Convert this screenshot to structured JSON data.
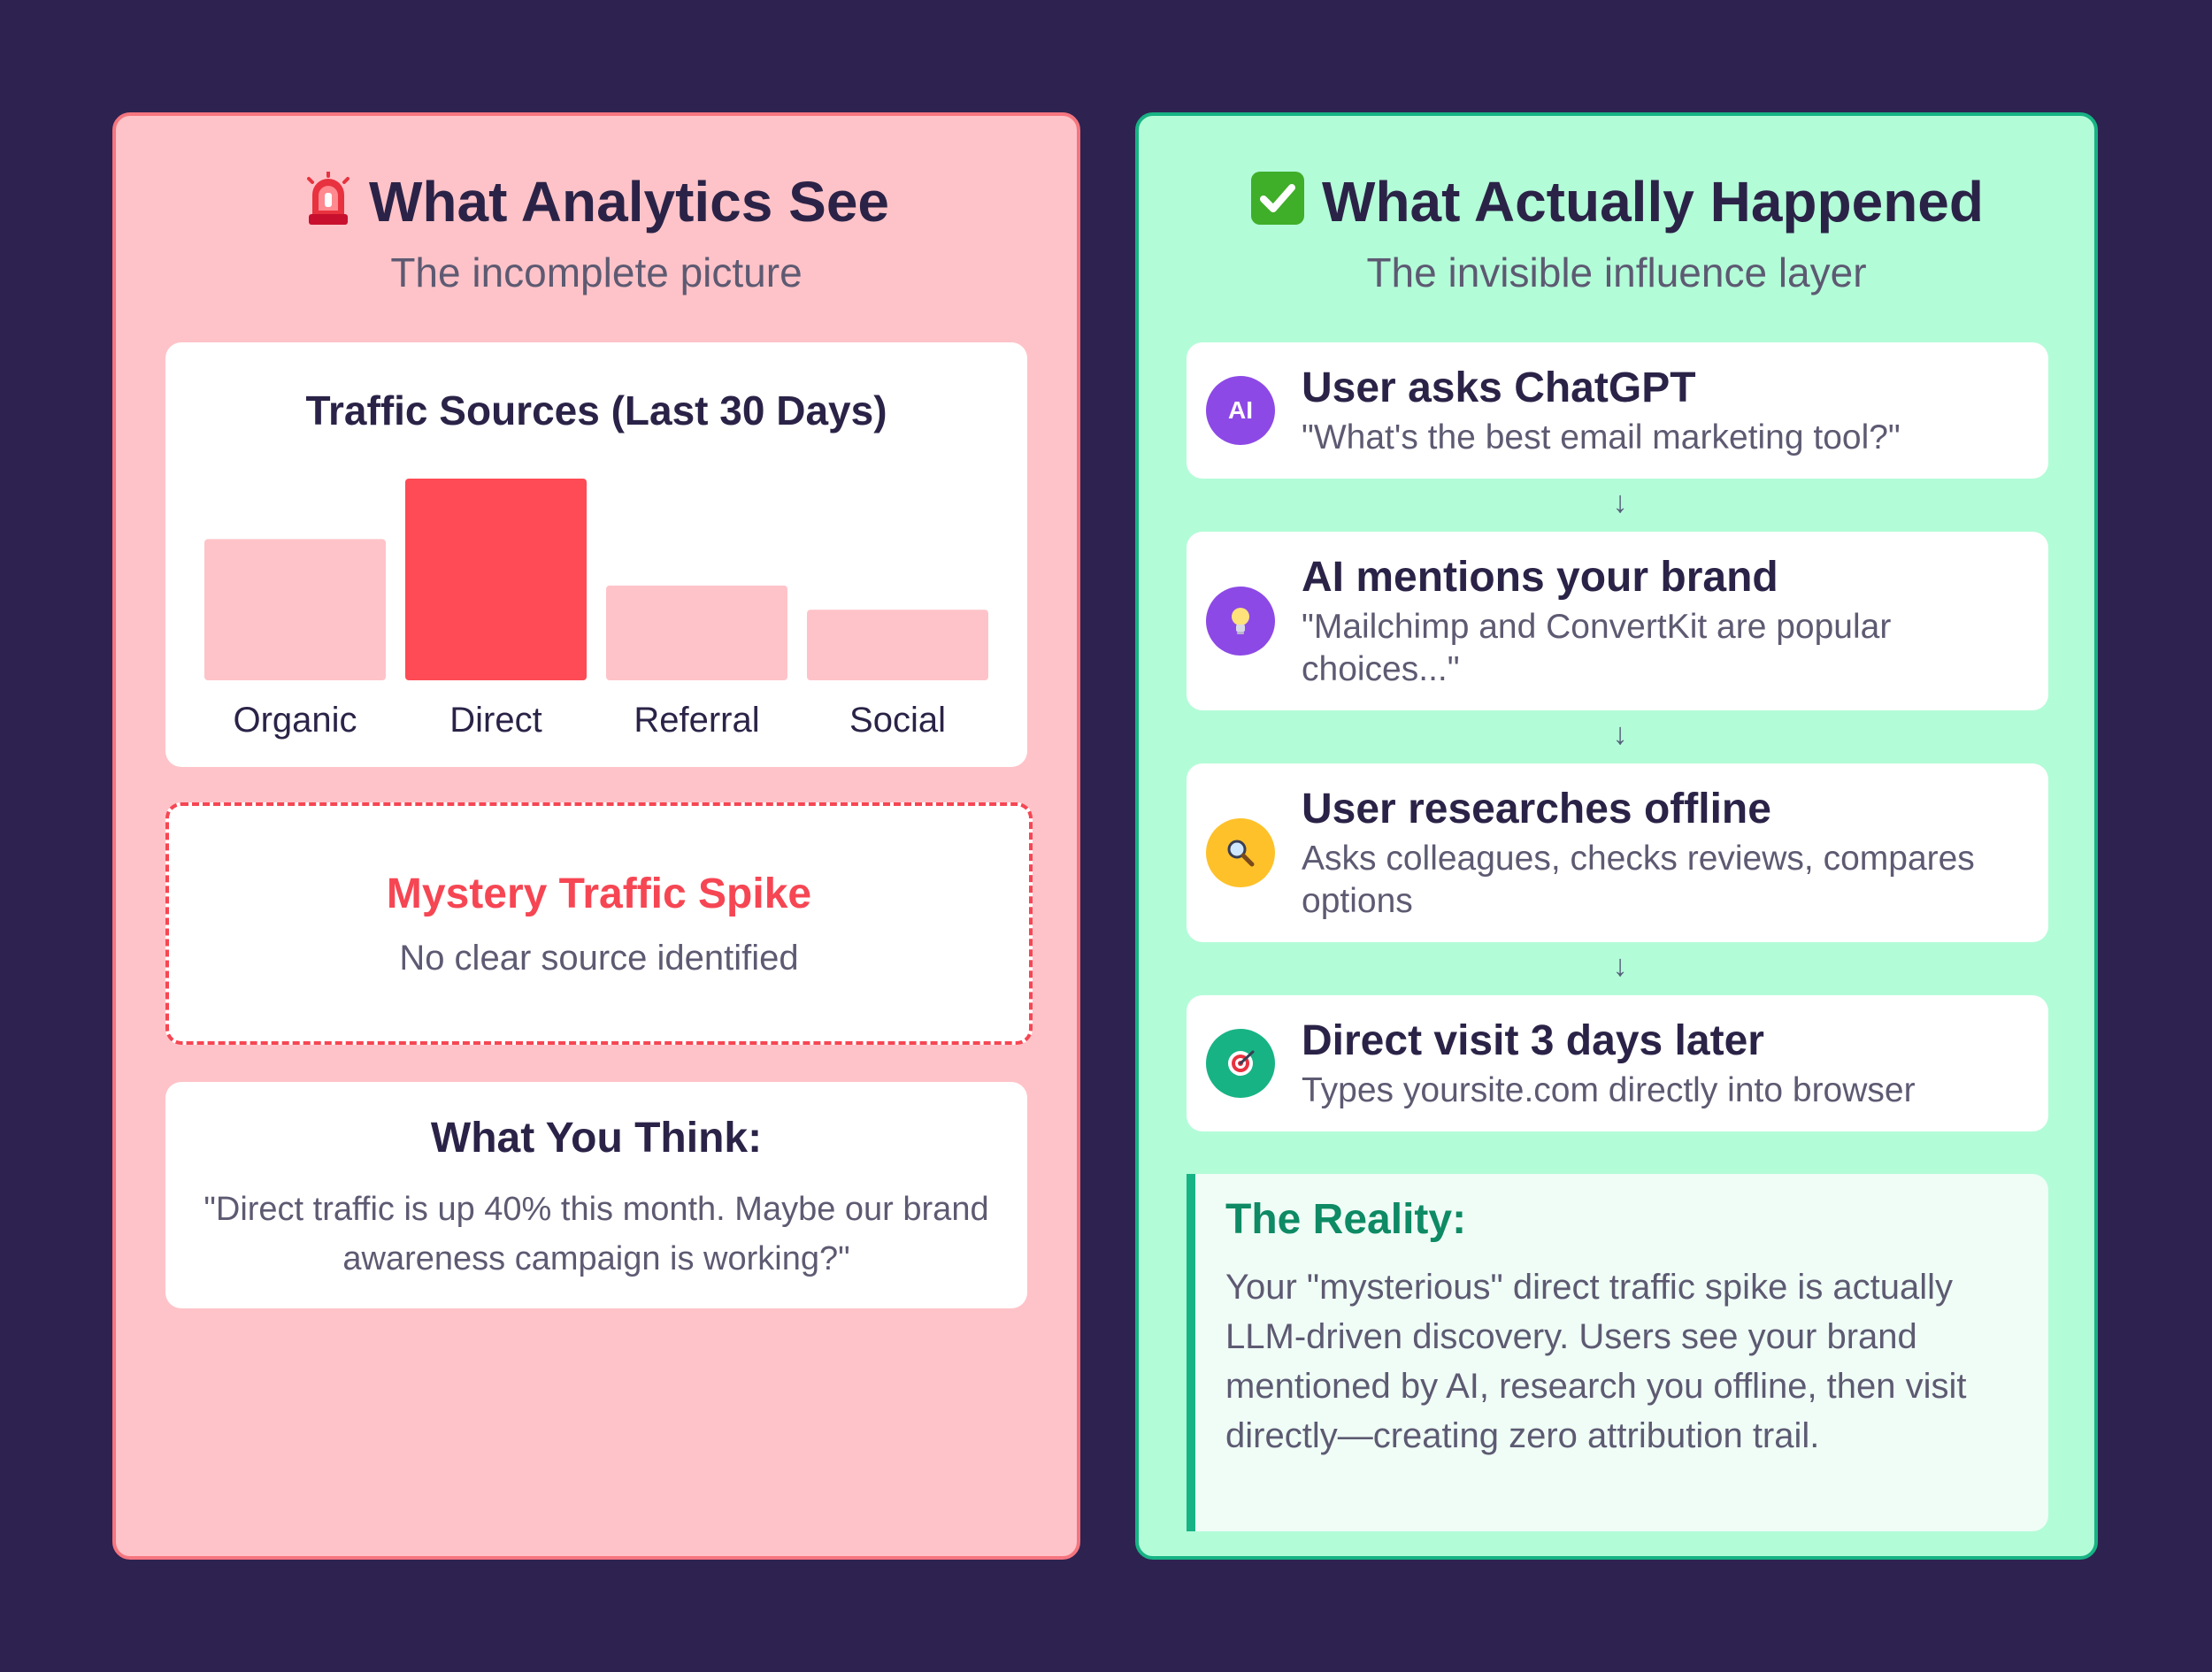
{
  "left_panel": {
    "icon": "siren-icon",
    "title": "What Analytics See",
    "subtitle": "The incomplete picture",
    "chart_card": {
      "chart_data": {
        "type": "bar",
        "title": "Traffic Sources (Last 30 Days)",
        "categories": [
          "Organic",
          "Direct",
          "Referral",
          "Social"
        ],
        "values": [
          70,
          100,
          47,
          35
        ],
        "highlight_category": "Direct",
        "colors": {
          "default": "#fec3c8",
          "highlight": "#fe4b55"
        },
        "xlabel": "",
        "ylabel": "",
        "ylim": [
          0,
          100
        ],
        "grid": false,
        "legend": "none"
      }
    },
    "mystery_card": {
      "title": "Mystery Traffic Spike",
      "subtitle": "No clear source identified"
    },
    "think_card": {
      "title": "What You Think:",
      "text": "\"Direct traffic is up 40% this month. Maybe our brand awareness campaign is working?\""
    }
  },
  "right_panel": {
    "icon": "check-mark-icon",
    "title": "What Actually Happened",
    "subtitle": "The invisible influence layer",
    "steps": [
      {
        "icon": "ai-badge-icon",
        "icon_text": "AI",
        "icon_color": "#8d49e6",
        "title": "User asks ChatGPT",
        "desc": "\"What's the best email marketing tool?\""
      },
      {
        "icon": "lightbulb-icon",
        "icon_color": "#8d49e6",
        "title": "AI mentions your brand",
        "desc": "\"Mailchimp and ConvertKit are popular choices...\""
      },
      {
        "icon": "magnifier-icon",
        "icon_color": "#fec12a",
        "title": "User researches offline",
        "desc": "Asks colleagues, checks reviews, compares options"
      },
      {
        "icon": "target-icon",
        "icon_color": "#17b384",
        "title": "Direct visit 3 days later",
        "desc": "Types yoursite.com directly into browser"
      }
    ],
    "arrow": "↓",
    "reality": {
      "title": "The Reality:",
      "text": "Your \"mysterious\" direct traffic spike is actually LLM-driven discovery. Users see your brand mentioned by AI, research you offline, then visit directly—creating zero attribution trail."
    }
  }
}
